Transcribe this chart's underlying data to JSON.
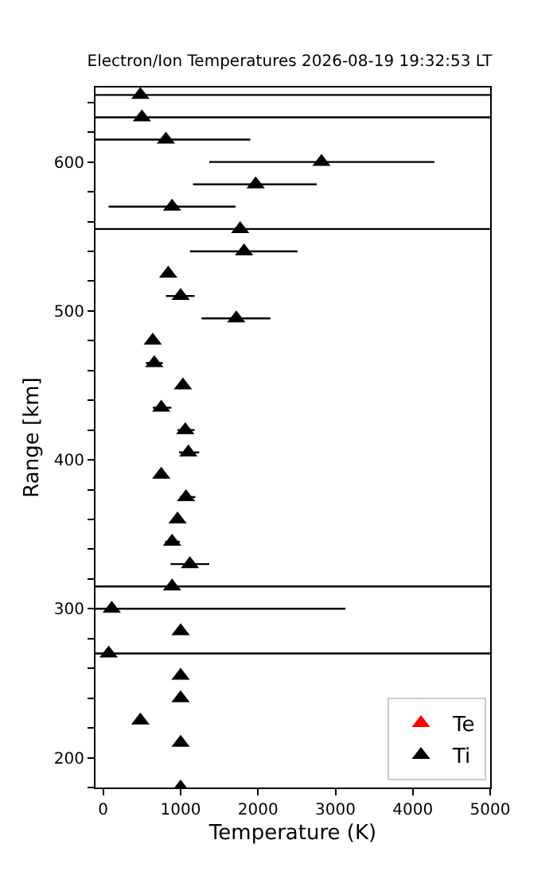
{
  "chart_data": {
    "type": "scatter",
    "title": "Electron/Ion Temperatures 2026-08-19 19:32:53 LT",
    "xlabel": "Temperature (K)",
    "ylabel": "Range [km]",
    "marker": "triangle",
    "legend": "bottom right",
    "xlim": [
      -100,
      5000
    ],
    "xticks": [
      0,
      1000,
      2000,
      3000,
      4000,
      5000
    ],
    "ylim": [
      180,
      650
    ],
    "yticks": [
      {
        "value": 180,
        "label": null
      },
      200,
      {
        "value": 220,
        "label": null
      },
      {
        "value": 240,
        "label": null
      },
      {
        "value": 260,
        "label": null
      },
      {
        "value": 280,
        "label": null
      },
      300,
      {
        "value": 320,
        "label": null
      },
      {
        "value": 340,
        "label": null
      },
      {
        "value": 360,
        "label": null
      },
      {
        "value": 380,
        "label": null
      },
      400,
      {
        "value": 420,
        "label": null
      },
      {
        "value": 440,
        "label": null
      },
      {
        "value": 460,
        "label": null
      },
      {
        "value": 480,
        "label": null
      },
      500,
      {
        "value": 520,
        "label": null
      },
      {
        "value": 540,
        "label": null
      },
      {
        "value": 560,
        "label": null
      },
      {
        "value": 580,
        "label": null
      },
      600,
      {
        "value": 620,
        "label": null
      },
      {
        "value": 640,
        "label": null
      }
    ],
    "series": [
      {
        "name": "Te",
        "color": "#ff0000",
        "x": [
          null
        ],
        "values": [
          null
        ]
      },
      {
        "name": "Ti",
        "color": "#000000",
        "x": [
          480,
          500,
          810,
          2820,
          1970,
          890,
          1770,
          1820,
          840,
          1000,
          1720,
          640,
          660,
          1030,
          750,
          1060,
          1100,
          750,
          1070,
          960,
          890,
          1120,
          890,
          110,
          1000,
          70,
          1000,
          1000,
          480,
          1000,
          1000
        ],
        "values": [
          645,
          630,
          615,
          600,
          585,
          570,
          555,
          540,
          525,
          510,
          495,
          480,
          465,
          450,
          435,
          420,
          405,
          390,
          375,
          360,
          345,
          330,
          315,
          300,
          285,
          270,
          255,
          240,
          225,
          210,
          180
        ],
        "xerrors": [
          [
            -100,
            5000
          ],
          [
            -100,
            5000
          ],
          [
            -100,
            1900
          ],
          [
            1370,
            4280
          ],
          [
            1160,
            2760
          ],
          [
            70,
            1710
          ],
          [
            -100,
            5000
          ],
          [
            1120,
            2510
          ],
          null,
          [
            810,
            1180
          ],
          [
            1270,
            2160
          ],
          null,
          [
            550,
            770
          ],
          null,
          [
            640,
            880
          ],
          [
            960,
            1180
          ],
          [
            980,
            1240
          ],
          null,
          [
            990,
            1190
          ],
          null,
          [
            800,
            990
          ],
          [
            870,
            1370
          ],
          [
            -100,
            5000
          ],
          [
            -100,
            3130
          ],
          null,
          [
            -100,
            5000
          ],
          null,
          null,
          null,
          null,
          null
        ]
      }
    ]
  }
}
